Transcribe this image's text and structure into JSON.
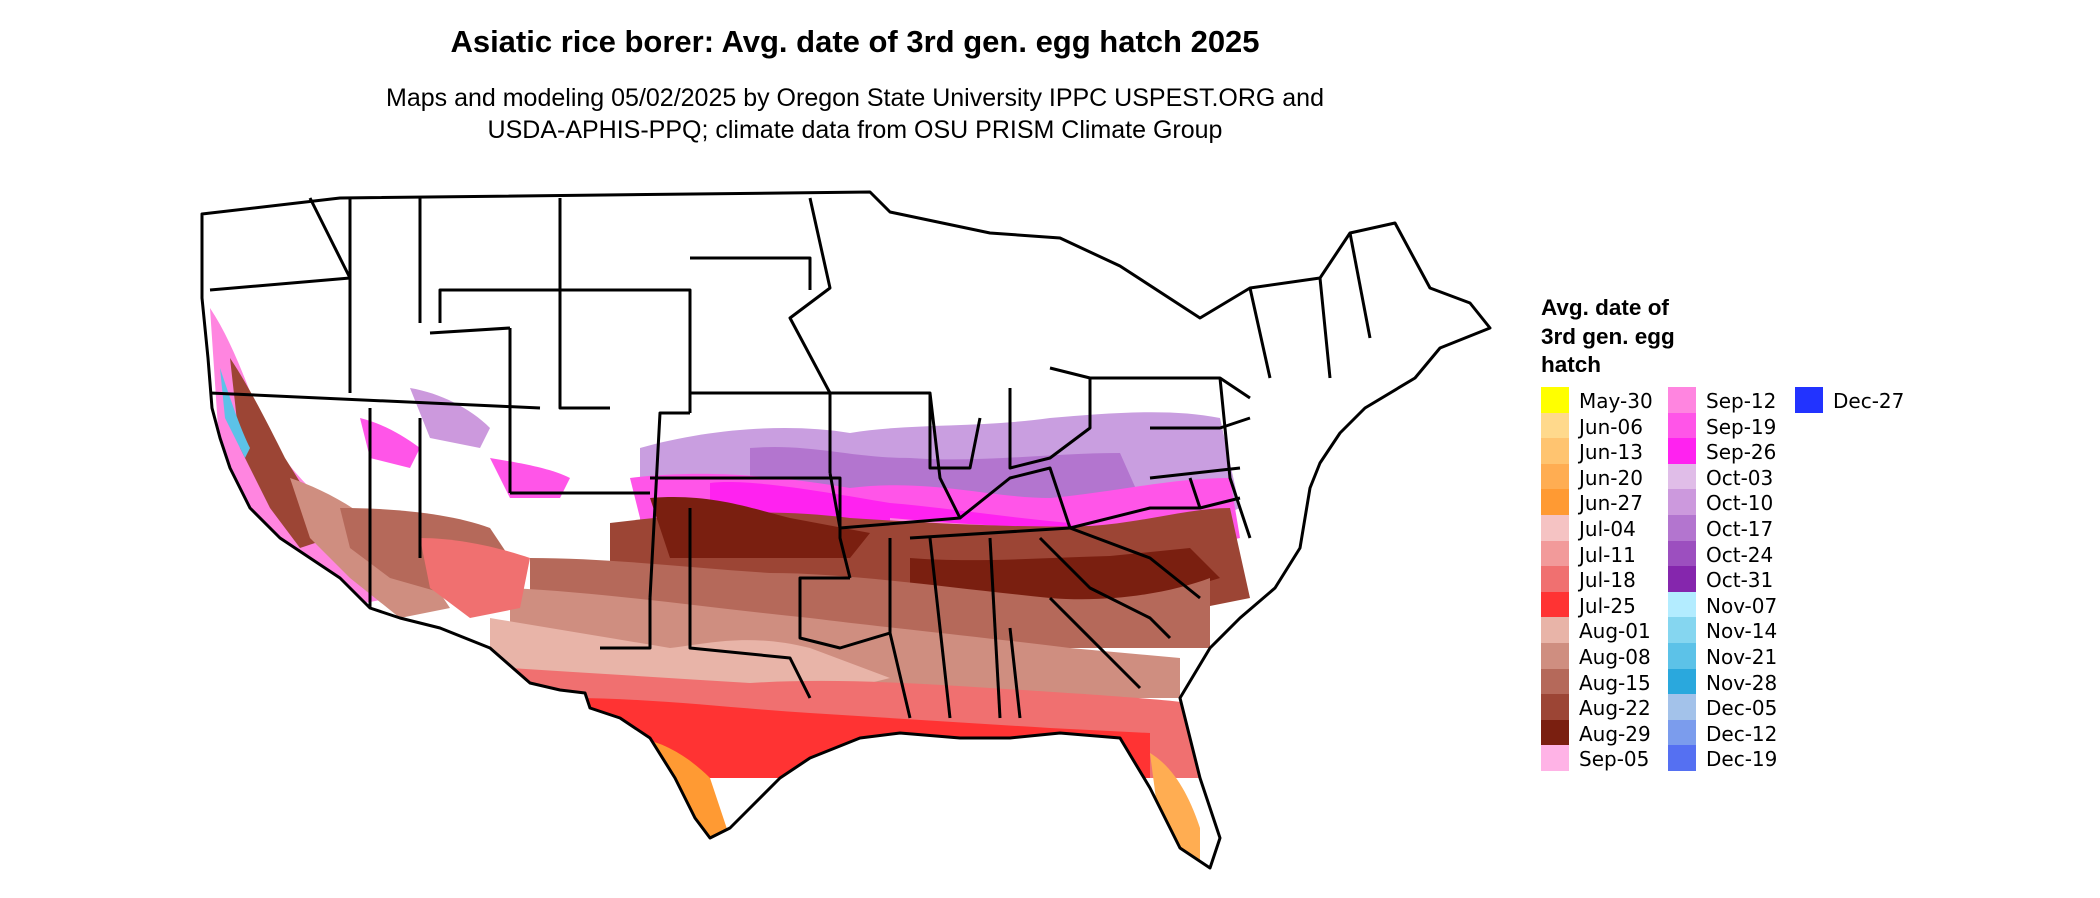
{
  "title": "Asiatic rice borer: Avg. date of 3rd gen. egg hatch 2025",
  "subtitle_line1": "Maps and modeling 05/02/2025 by Oregon State University IPPC USPEST.ORG and",
  "subtitle_line2": "USDA-APHIS-PPQ; climate data from OSU PRISM Climate Group",
  "legend": {
    "title_lines": [
      "Avg. date of",
      "3rd gen. egg",
      "hatch"
    ],
    "items": [
      {
        "label": "May-30",
        "color": "#ffff00"
      },
      {
        "label": "Jun-06",
        "color": "#ffd98c"
      },
      {
        "label": "Jun-13",
        "color": "#ffc470"
      },
      {
        "label": "Jun-20",
        "color": "#ffad52"
      },
      {
        "label": "Jun-27",
        "color": "#ff9a33"
      },
      {
        "label": "Jul-04",
        "color": "#f5c3c3"
      },
      {
        "label": "Jul-11",
        "color": "#f29a9a"
      },
      {
        "label": "Jul-18",
        "color": "#f07070"
      },
      {
        "label": "Jul-25",
        "color": "#ff3333"
      },
      {
        "label": "Aug-01",
        "color": "#e8b4a8"
      },
      {
        "label": "Aug-08",
        "color": "#cf8e80"
      },
      {
        "label": "Aug-15",
        "color": "#b5695a"
      },
      {
        "label": "Aug-22",
        "color": "#9c4535"
      },
      {
        "label": "Aug-29",
        "color": "#7a1f10"
      },
      {
        "label": "Sep-05",
        "color": "#ffb3e6"
      },
      {
        "label": "Sep-12",
        "color": "#ff85e0"
      },
      {
        "label": "Sep-19",
        "color": "#ff55e8"
      },
      {
        "label": "Sep-26",
        "color": "#ff22f0"
      },
      {
        "label": "Oct-03",
        "color": "#e0bde8"
      },
      {
        "label": "Oct-10",
        "color": "#cc99dd"
      },
      {
        "label": "Oct-17",
        "color": "#b375cf"
      },
      {
        "label": "Oct-24",
        "color": "#9c4fbf"
      },
      {
        "label": "Oct-31",
        "color": "#8526ad"
      },
      {
        "label": "Nov-07",
        "color": "#b3ecff"
      },
      {
        "label": "Nov-14",
        "color": "#85d6f0"
      },
      {
        "label": "Nov-21",
        "color": "#5cc2e8"
      },
      {
        "label": "Nov-28",
        "color": "#2aa8dd"
      },
      {
        "label": "Dec-05",
        "color": "#a3c2ea"
      },
      {
        "label": "Dec-12",
        "color": "#7b9ced"
      },
      {
        "label": "Dec-19",
        "color": "#5570f2"
      },
      {
        "label": "Dec-27",
        "color": "#2233ff"
      }
    ]
  }
}
